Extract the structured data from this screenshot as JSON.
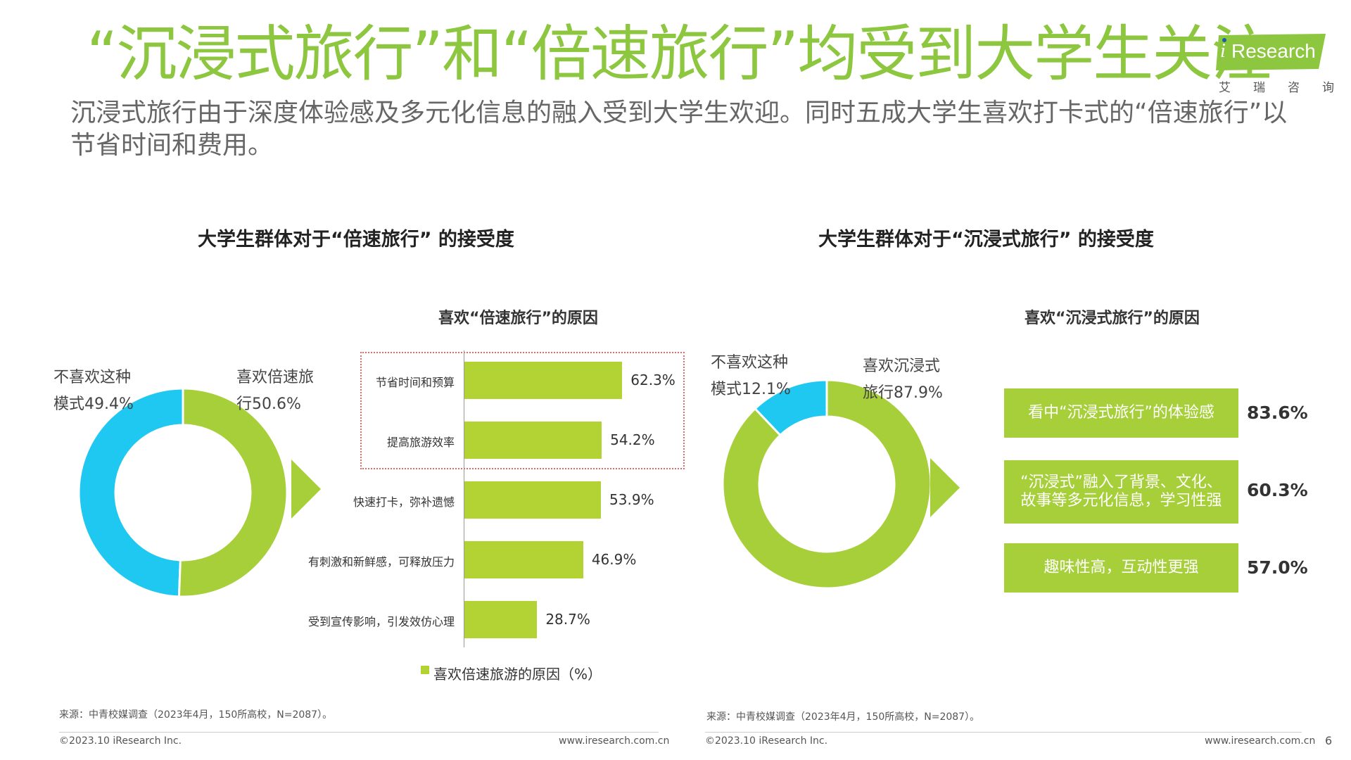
{
  "title": "“沉浸式旅行”和“倍速旅行”均受到大学生关注",
  "subtitle": "沉浸式旅行由于深度体验感及多元化信息的融入受到大学生欢迎。同时五成大学生喜欢打卡式的“倍速旅行”以节省时间和费用。",
  "logo": {
    "word": "Research",
    "letter": "i",
    "cn": [
      "艾",
      "瑞",
      "咨",
      "询"
    ]
  },
  "colors": {
    "green": "#b3d334",
    "donut_green": "#a6cf3a",
    "blue": "#1ec8f0",
    "title_green": "#8dc63f"
  },
  "left": {
    "section_title": "大学生群体对于“倍速旅行” 的接受度",
    "bar_title": "喜欢“倍速旅行”的原因",
    "legend": "喜欢倍速旅游的原因（%）",
    "donut_labels": {
      "dislike_line1": "不喜欢这种",
      "dislike_line2": "模式49.4%",
      "like_line1": "喜欢倍速旅",
      "like_line2": "行50.6%"
    }
  },
  "right": {
    "section_title": "大学生群体对于“沉浸式旅行” 的接受度",
    "reasons_title": "喜欢“沉浸式旅行”的原因",
    "donut_labels": {
      "dislike_line1": "不喜欢这种",
      "dislike_line2": "模式12.1%",
      "like_line1": "喜欢沉浸式",
      "like_line2": "旅行87.9%"
    }
  },
  "chart_data": [
    {
      "type": "pie",
      "categories": [
        "不喜欢这种模式",
        "喜欢倍速旅行"
      ],
      "values": [
        49.4,
        50.6
      ],
      "title": "大学生群体对于“倍速旅行” 的接受度"
    },
    {
      "type": "bar",
      "orientation": "horizontal",
      "title": "喜欢“倍速旅行”的原因",
      "categories": [
        "节省时间和预算",
        "提高旅游效率",
        "快速打卡，弥补遗憾",
        "有刺激和新鲜感，可释放压力",
        "受到宣传影响，引发效仿心理"
      ],
      "values": [
        62.3,
        54.2,
        53.9,
        46.9,
        28.7
      ],
      "value_labels": [
        "62.3%",
        "54.2%",
        "53.9%",
        "46.9%",
        "28.7%"
      ],
      "series": [
        {
          "name": "喜欢倍速旅游的原因（%）",
          "values": [
            62.3,
            54.2,
            53.9,
            46.9,
            28.7
          ]
        }
      ],
      "highlighted": [
        "节省时间和预算",
        "提高旅游效率"
      ],
      "legend": "bottom"
    },
    {
      "type": "pie",
      "categories": [
        "不喜欢这种模式",
        "喜欢沉浸式旅行"
      ],
      "values": [
        12.1,
        87.9
      ],
      "title": "大学生群体对于“沉浸式旅行” 的接受度"
    },
    {
      "type": "table",
      "title": "喜欢“沉浸式旅行”的原因",
      "categories": [
        "看中“沉浸式旅行”的体验感",
        "“沉浸式”融入了背景、文化、故事等多元化信息，学习性强",
        "趣味性高，互动性更强"
      ],
      "values": [
        83.6,
        60.3,
        57.0
      ],
      "value_labels": [
        "83.6%",
        "60.3%",
        "57.0%"
      ]
    }
  ],
  "source": "来源：中青校媒调查（2023年4月，150所高校，N=2087）。",
  "footer": {
    "copyright": "©2023.10 iResearch Inc.",
    "url": "www.iresearch.com.cn",
    "page": "6"
  }
}
